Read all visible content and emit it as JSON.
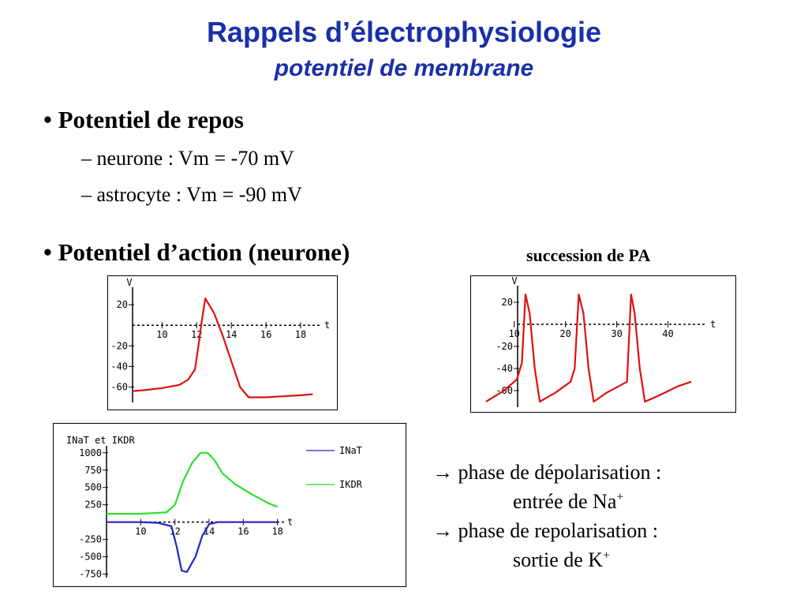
{
  "slide": {
    "title": "Rappels d’électrophysiologie",
    "subtitle": "potentiel de membrane",
    "bullets": [
      {
        "marker": "•",
        "text": "Potentiel de repos"
      },
      {
        "marker": "•",
        "text": "Potentiel d’action (neurone)"
      }
    ],
    "sub_items": [
      "– neurone : Vm = -70 mV",
      "– astrocyte : Vm = -90 mV"
    ],
    "succession_caption": "succession de PA",
    "phases": {
      "line1": "phase de dépolarisation :",
      "line2": "entrée de Na",
      "line2_sup": "+",
      "line3": "phase de repolarisation :",
      "line4": "sortie de K",
      "line4_sup": "+",
      "arrow": "→"
    }
  },
  "chart_data": [
    {
      "type": "line",
      "xlabel": "t",
      "ylabel": "V",
      "xticks": [
        10,
        12,
        14,
        16,
        18
      ],
      "yticks": [
        20,
        -20,
        -40,
        -60
      ],
      "xlim": [
        8.3,
        19
      ],
      "ylim": [
        -75,
        37
      ],
      "color": "#e01010",
      "series": [
        {
          "x": [
            8.3,
            9,
            10,
            11,
            11.5,
            11.9,
            12.1,
            12.3,
            12.5,
            13,
            13.5,
            14,
            14.5,
            15,
            16,
            17,
            18,
            18.7
          ],
          "y": [
            -64,
            -63,
            -61,
            -58,
            -53,
            -43,
            -20,
            5,
            26,
            12,
            -10,
            -35,
            -60,
            -70,
            -70,
            -69,
            -68,
            -67
          ]
        }
      ]
    },
    {
      "type": "line",
      "xlabel": "t",
      "ylabel": "V",
      "xticks": [
        10,
        20,
        30,
        40
      ],
      "yticks": [
        20,
        -20,
        -40,
        -60
      ],
      "xlim": [
        4.2,
        47
      ],
      "ylim": [
        -75,
        35
      ],
      "color": "#e01010",
      "series": [
        {
          "x": [
            4.5,
            8,
            10.5,
            11.5,
            12.2,
            13,
            14,
            15,
            18,
            21,
            21.8,
            22.6,
            23.5,
            24.5,
            25.5,
            28,
            32,
            32.8,
            33.5,
            34.5,
            35.5,
            38,
            42,
            44.5
          ],
          "y": [
            -70,
            -60,
            -50,
            -35,
            27,
            10,
            -40,
            -70,
            -62,
            -52,
            -40,
            27,
            10,
            -40,
            -70,
            -62,
            -52,
            27,
            10,
            -40,
            -70,
            -65,
            -56,
            -52
          ]
        }
      ]
    },
    {
      "type": "line",
      "title": "INaT et IKDR",
      "xlabel": "t",
      "xticks": [
        10,
        12,
        14,
        16,
        18
      ],
      "yticks": [
        1000,
        750,
        500,
        250,
        -250,
        -500,
        -750
      ],
      "xlim": [
        8,
        18.2
      ],
      "ylim": [
        -800,
        1100
      ],
      "legend_position": "right",
      "series": [
        {
          "name": "INaT",
          "color": "#2323cc",
          "x": [
            8,
            10,
            11,
            11.8,
            12.1,
            12.4,
            12.7,
            13.2,
            13.6,
            14,
            14.5,
            15,
            16,
            18
          ],
          "y": [
            0,
            0,
            -10,
            -60,
            -350,
            -700,
            -720,
            -500,
            -200,
            -30,
            0,
            0,
            0,
            0
          ]
        },
        {
          "name": "IKDR",
          "color": "#2ee02e",
          "x": [
            8,
            10,
            11.5,
            12,
            12.5,
            13,
            13.5,
            13.9,
            14.3,
            14.8,
            15.5,
            16.5,
            17.5,
            18
          ],
          "y": [
            120,
            120,
            140,
            250,
            600,
            850,
            1000,
            1000,
            900,
            700,
            550,
            400,
            270,
            220
          ]
        }
      ]
    }
  ]
}
